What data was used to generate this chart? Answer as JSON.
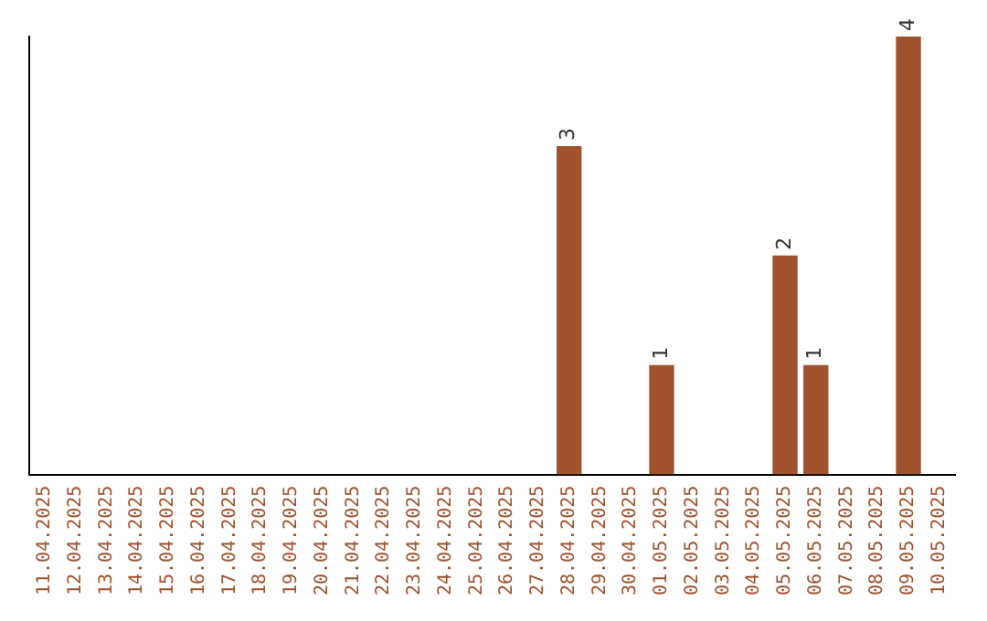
{
  "chart_data": {
    "type": "bar",
    "categories": [
      "11.04.2025",
      "12.04.2025",
      "13.04.2025",
      "14.04.2025",
      "15.04.2025",
      "16.04.2025",
      "17.04.2025",
      "18.04.2025",
      "19.04.2025",
      "20.04.2025",
      "21.04.2025",
      "22.04.2025",
      "23.04.2025",
      "24.04.2025",
      "25.04.2025",
      "26.04.2025",
      "27.04.2025",
      "28.04.2025",
      "29.04.2025",
      "30.04.2025",
      "01.05.2025",
      "02.05.2025",
      "03.05.2025",
      "04.05.2025",
      "05.05.2025",
      "06.05.2025",
      "07.05.2025",
      "08.05.2025",
      "09.05.2025",
      "10.05.2025"
    ],
    "values": [
      null,
      null,
      null,
      null,
      null,
      null,
      null,
      null,
      null,
      null,
      null,
      null,
      null,
      null,
      null,
      null,
      null,
      3,
      null,
      null,
      1,
      null,
      null,
      null,
      2,
      1,
      null,
      null,
      4,
      null
    ],
    "data_labels": true,
    "color": "#a0522d",
    "tick_labels": "x",
    "grid": false,
    "legend": false
  }
}
